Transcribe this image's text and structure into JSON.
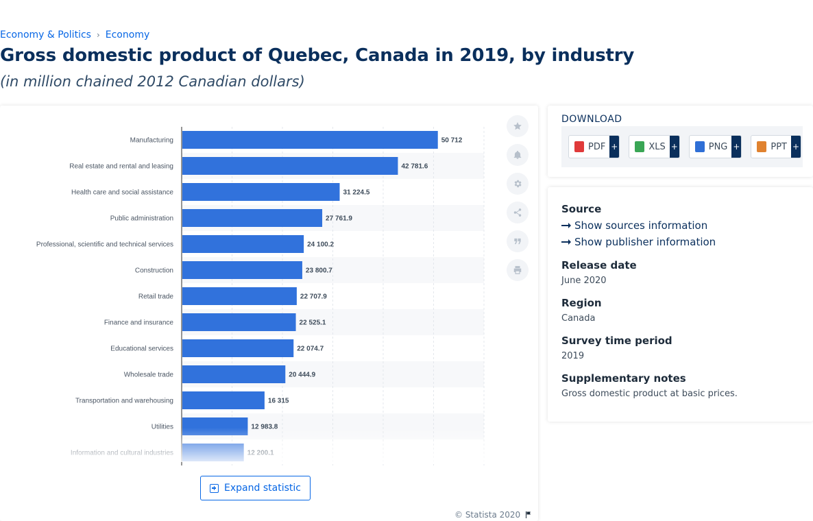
{
  "breadcrumb": {
    "item1": "Economy & Politics",
    "separator": "›",
    "item2": "Economy"
  },
  "title": "Gross domestic product of Quebec, Canada in 2019, by industry",
  "subtitle": "(in million chained 2012 Canadian dollars)",
  "chart_data": {
    "type": "bar",
    "orientation": "horizontal",
    "categories": [
      "Manufacturing",
      "Real estate and rental and leasing",
      "Health care and social assistance",
      "Public administration",
      "Professional, scientific and technical services",
      "Construction",
      "Retail trade",
      "Finance and insurance",
      "Educational services",
      "Wholesale trade",
      "Transportation and warehousing",
      "Utilities",
      "Information and cultural industries"
    ],
    "values": [
      50712,
      42781.6,
      31224.5,
      27761.9,
      24100.2,
      23800.7,
      22707.9,
      22525.1,
      22074.7,
      20444.9,
      16315,
      12983.8,
      12200.1
    ],
    "value_labels": [
      "50 712",
      "42 781.6",
      "31 224.5",
      "27 761.9",
      "24 100.2",
      "23 800.7",
      "22 707.9",
      "22 525.1",
      "22 074.7",
      "20 444.9",
      "16 315",
      "12 983.8",
      "12 200.1"
    ],
    "xlim": [
      0,
      60000
    ],
    "grid": true,
    "bar_color": "#3172dc",
    "value_label_color": "#3d4b5a"
  },
  "actions": {
    "expand_label": "Expand statistic",
    "copyright": "© Statista 2020",
    "tools": [
      "star-icon",
      "bell-icon",
      "gear-icon",
      "share-icon",
      "quote-icon",
      "print-icon"
    ]
  },
  "download": {
    "title": "DOWNLOAD",
    "buttons": [
      {
        "label": "PDF",
        "plus": "+",
        "color": "#e03a3a"
      },
      {
        "label": "XLS",
        "plus": "+",
        "color": "#3aa655"
      },
      {
        "label": "PNG",
        "plus": "+",
        "color": "#2f6fd6"
      },
      {
        "label": "PPT",
        "plus": "+",
        "color": "#e0822f"
      }
    ]
  },
  "info": {
    "source_heading": "Source",
    "show_sources": "Show sources information",
    "show_publisher": "Show publisher information",
    "release_heading": "Release date",
    "release_value": "June 2020",
    "region_heading": "Region",
    "region_value": "Canada",
    "survey_heading": "Survey time period",
    "survey_value": "2019",
    "notes_heading": "Supplementary notes",
    "notes_value": "Gross domestic product at basic prices."
  }
}
